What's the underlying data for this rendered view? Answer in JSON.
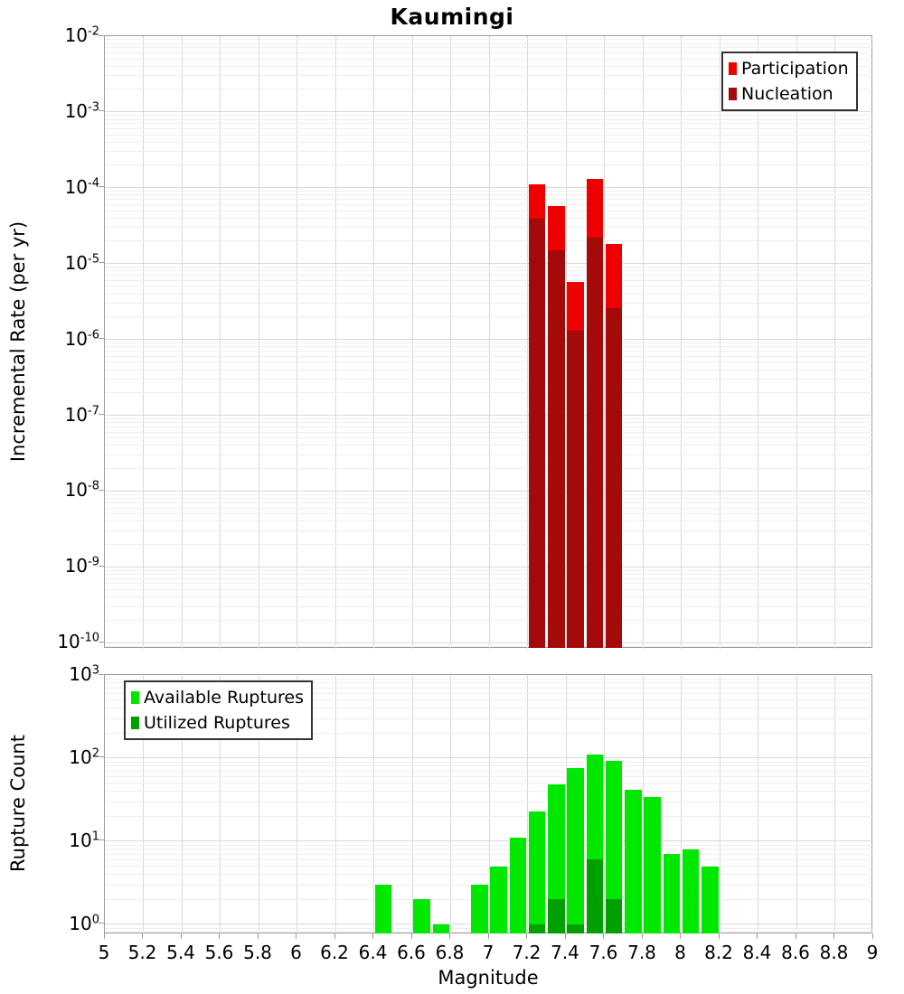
{
  "title": "Kaumingi",
  "colors": {
    "grid_major": "#d9d9d9",
    "grid_minor": "#eeeeee",
    "axis": "#9b9b9b",
    "text": "#000000"
  },
  "axes": {
    "x": {
      "label": "Magnitude",
      "min": 5,
      "max": 9,
      "tick_labels": [
        "5",
        "5.2",
        "5.4",
        "5.6",
        "5.8",
        "6",
        "6.2",
        "6.4",
        "6.6",
        "6.8",
        "7",
        "7.2",
        "7.4",
        "7.6",
        "7.8",
        "8",
        "8.2",
        "8.4",
        "8.6",
        "8.8",
        "9"
      ]
    },
    "rate_y": {
      "label": "Incremental Rate (per yr)",
      "scale": "log",
      "tick_exponents": [
        -2,
        -3,
        -4,
        -5,
        -6,
        -7,
        -8,
        -9,
        -10
      ]
    },
    "count_y": {
      "label": "Rupture Count",
      "scale": "log",
      "tick_exponents": [
        3,
        2,
        1,
        0
      ]
    }
  },
  "chart_data": [
    {
      "type": "bar",
      "panel": "top",
      "title": "Kaumingi",
      "xlabel": "Magnitude",
      "ylabel": "Incremental Rate (per yr)",
      "yscale": "log",
      "ylim": [
        1e-10,
        0.01
      ],
      "xlim": [
        5,
        9
      ],
      "bin_width": 0.1,
      "grid": true,
      "legend_position": "top-right",
      "categories": [
        7.25,
        7.35,
        7.45,
        7.55,
        7.65
      ],
      "series": [
        {
          "name": "Participation",
          "color": "#ee0000",
          "values": [
            0.00011,
            5.8e-05,
            5.7e-06,
            0.00013,
            1.8e-05
          ]
        },
        {
          "name": "Nucleation",
          "color": "#a40a0a",
          "values": [
            3.9e-05,
            1.5e-05,
            1.3e-06,
            2.2e-05,
            2.6e-06
          ]
        }
      ]
    },
    {
      "type": "bar",
      "panel": "bottom",
      "xlabel": "Magnitude",
      "ylabel": "Rupture Count",
      "yscale": "log",
      "ylim": [
        1,
        1000
      ],
      "xlim": [
        5,
        9
      ],
      "bin_width": 0.1,
      "grid": true,
      "legend_position": "top-left",
      "categories": [
        6.45,
        6.65,
        6.75,
        6.95,
        7.05,
        7.15,
        7.25,
        7.35,
        7.45,
        7.55,
        7.65,
        7.75,
        7.85,
        7.95,
        8.05,
        8.15
      ],
      "series": [
        {
          "name": "Available Ruptures",
          "color": "#00e800",
          "values": [
            3,
            2,
            1,
            3,
            5,
            11,
            23,
            48,
            75,
            110,
            92,
            42,
            34,
            7,
            8,
            5
          ]
        },
        {
          "name": "Utilized Ruptures",
          "color": "#00a000",
          "values": [
            null,
            null,
            null,
            null,
            null,
            null,
            1,
            2,
            1,
            6,
            2,
            null,
            null,
            null,
            null,
            null
          ]
        }
      ]
    }
  ]
}
